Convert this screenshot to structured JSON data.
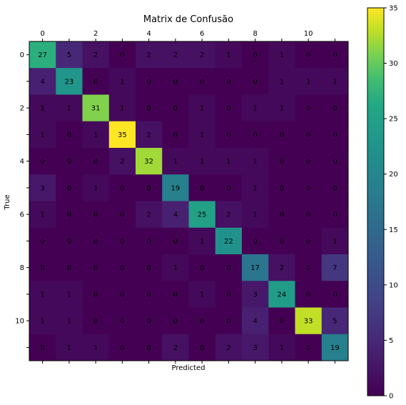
{
  "chart_data": {
    "type": "heatmap",
    "title": "Matrix de Confusão",
    "xlabel": "Predicted",
    "ylabel": "True",
    "x_ticks": [
      "0",
      "2",
      "4",
      "6",
      "8",
      "10"
    ],
    "y_ticks": [
      "0",
      "2",
      "4",
      "6",
      "8",
      "10"
    ],
    "colorbar_ticks": [
      "0",
      "5",
      "10",
      "15",
      "20",
      "25",
      "30",
      "35"
    ],
    "value_range": [
      0,
      35
    ],
    "colormap": "viridis",
    "matrix": [
      [
        27,
        5,
        2,
        0,
        2,
        2,
        2,
        1,
        0,
        1,
        0,
        0
      ],
      [
        4,
        23,
        0,
        1,
        0,
        0,
        0,
        0,
        0,
        1,
        1,
        1
      ],
      [
        1,
        1,
        31,
        1,
        0,
        0,
        1,
        0,
        1,
        1,
        0,
        0
      ],
      [
        1,
        0,
        1,
        35,
        2,
        0,
        1,
        0,
        0,
        0,
        0,
        0
      ],
      [
        0,
        0,
        0,
        2,
        32,
        1,
        1,
        1,
        1,
        0,
        0,
        0
      ],
      [
        3,
        0,
        1,
        0,
        0,
        19,
        0,
        0,
        1,
        0,
        0,
        0
      ],
      [
        1,
        0,
        0,
        0,
        2,
        4,
        25,
        2,
        1,
        0,
        0,
        0
      ],
      [
        0,
        0,
        0,
        0,
        0,
        0,
        1,
        22,
        0,
        0,
        0,
        1
      ],
      [
        0,
        0,
        0,
        0,
        0,
        1,
        0,
        0,
        17,
        2,
        0,
        7
      ],
      [
        1,
        1,
        0,
        0,
        0,
        0,
        1,
        0,
        3,
        24,
        0,
        0
      ],
      [
        1,
        1,
        0,
        0,
        0,
        0,
        0,
        0,
        4,
        0,
        33,
        5
      ],
      [
        0,
        1,
        1,
        0,
        0,
        2,
        0,
        2,
        3,
        1,
        0,
        19
      ]
    ]
  }
}
